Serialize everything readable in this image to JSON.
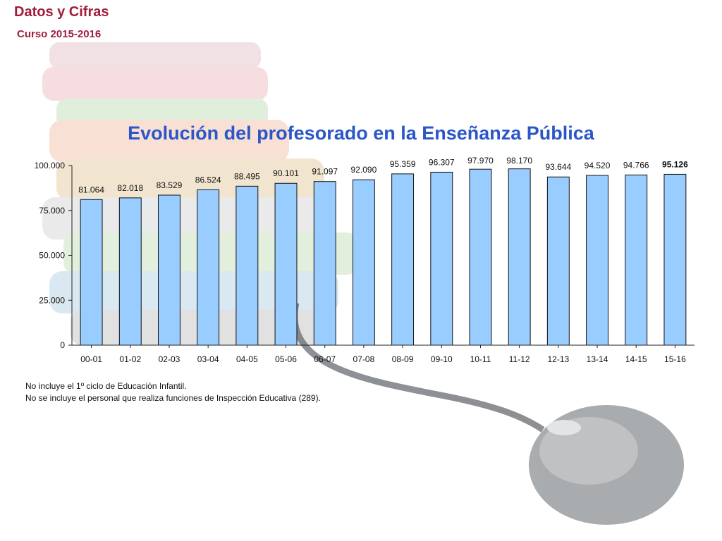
{
  "header": {
    "title": "Datos y Cifras",
    "subtitle": "Curso 2015-2016"
  },
  "chart_data": {
    "type": "bar",
    "title": "Evolución del profesorado en la  Enseñanza Pública",
    "xlabel": "",
    "ylabel": "",
    "categories": [
      "00-01",
      "01-02",
      "02-03",
      "03-04",
      "04-05",
      "05-06",
      "06-07",
      "07-08",
      "08-09",
      "09-10",
      "10-11",
      "11-12",
      "12-13",
      "13-14",
      "14-15",
      "15-16"
    ],
    "values": [
      81064,
      82018,
      83529,
      86524,
      88495,
      90101,
      91097,
      92090,
      95359,
      96307,
      97970,
      98170,
      93644,
      94520,
      94766,
      95126
    ],
    "value_labels": [
      "81.064",
      "82.018",
      "83.529",
      "86.524",
      "88.495",
      "90.101",
      "91.097",
      "92.090",
      "95.359",
      "96.307",
      "97.970",
      "98.170",
      "93.644",
      "94.520",
      "94.766",
      "95.126"
    ],
    "y_ticks": [
      0,
      25000,
      50000,
      75000,
      100000
    ],
    "y_tick_labels": [
      "0",
      "25.000",
      "50.000",
      "75.000",
      "100.000"
    ],
    "ylim": [
      0,
      100000
    ],
    "grid": false,
    "legend": "none",
    "bar_color": "#99ccff",
    "bar_stroke": "#111111",
    "highlight_last_label": true
  },
  "notes": [
    "No incluye el 1º ciclo de Educación Infantil.",
    "No se incluye el personal que realiza funciones de Inspección Educativa (289)."
  ],
  "colors": {
    "header": "#a11d3c",
    "title": "#2b56c8"
  }
}
